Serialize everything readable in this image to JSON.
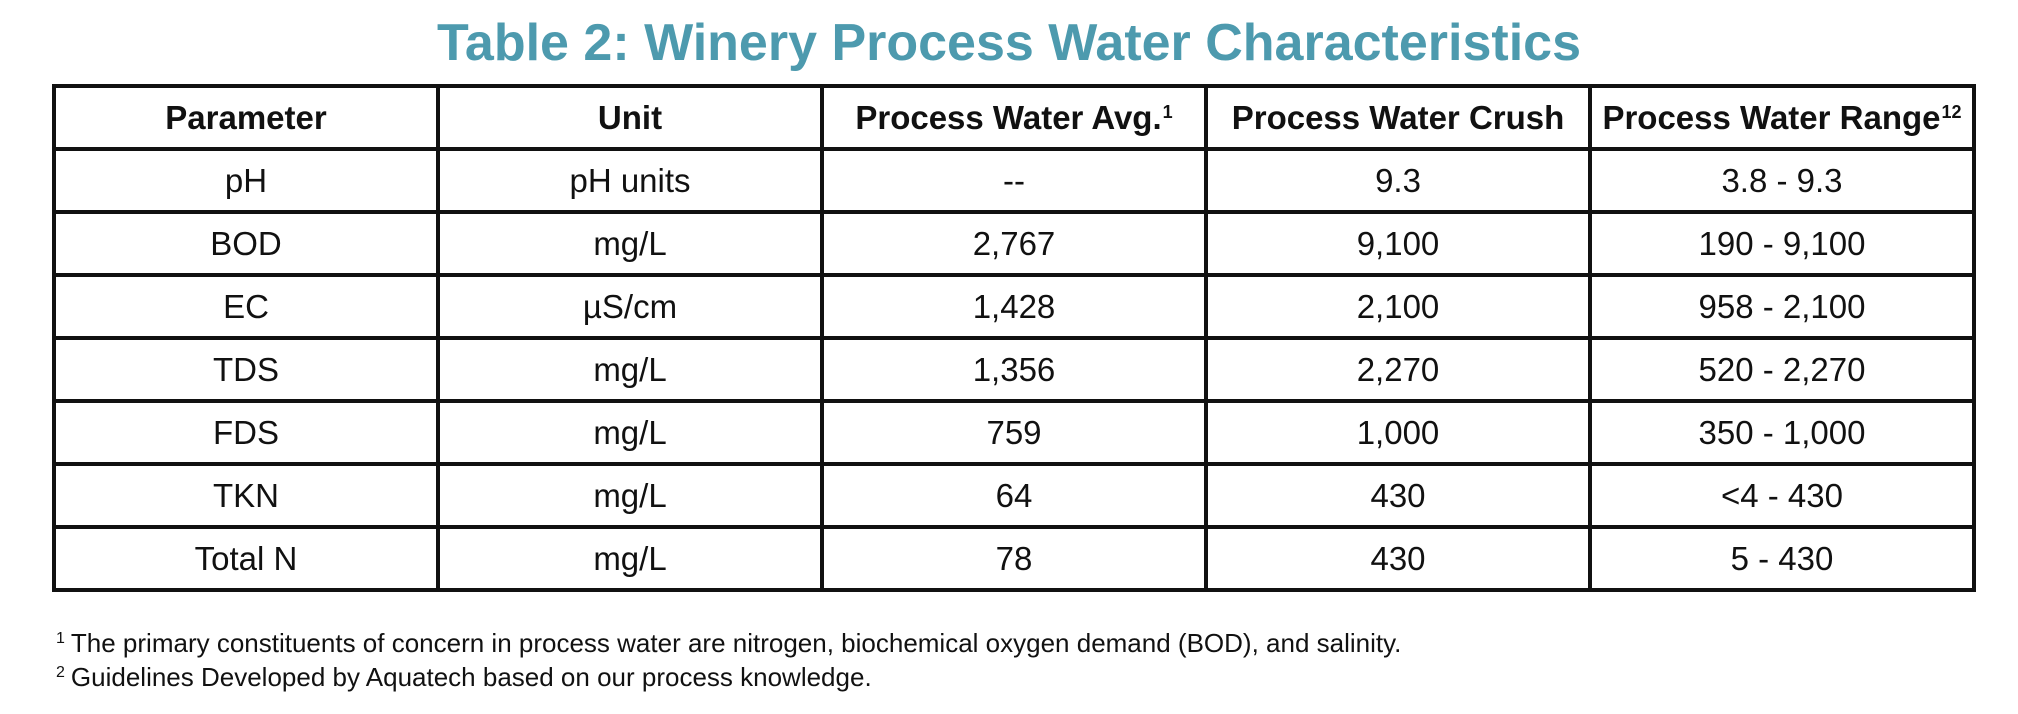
{
  "title": "Table 2: Winery Process Water Characteristics",
  "colors": {
    "title": "#4d9aae",
    "border": "#111111",
    "text": "#111111"
  },
  "table": {
    "headers": [
      {
        "label": "Parameter",
        "sup": ""
      },
      {
        "label": "Unit",
        "sup": ""
      },
      {
        "label": "Process Water Avg.",
        "sup": "1"
      },
      {
        "label": "Process Water Crush",
        "sup": ""
      },
      {
        "label": "Process Water Range",
        "sup": "12"
      }
    ],
    "rows": [
      [
        "pH",
        "pH units",
        "--",
        "9.3",
        "3.8 - 9.3"
      ],
      [
        "BOD",
        "mg/L",
        "2,767",
        "9,100",
        "190 - 9,100"
      ],
      [
        "EC",
        "µS/cm",
        "1,428",
        "2,100",
        "958 - 2,100"
      ],
      [
        "TDS",
        "mg/L",
        "1,356",
        "2,270",
        "520 - 2,270"
      ],
      [
        "FDS",
        "mg/L",
        "759",
        "1,000",
        "350 - 1,000"
      ],
      [
        "TKN",
        "mg/L",
        "64",
        "430",
        "<4 - 430"
      ],
      [
        "Total N",
        "mg/L",
        "78",
        "430",
        "5 - 430"
      ]
    ]
  },
  "footnotes": [
    {
      "mark": "1",
      "text": "The primary constituents of concern in process water are nitrogen, biochemical oxygen demand (BOD), and salinity."
    },
    {
      "mark": "2",
      "text": "Guidelines Developed by Aquatech based on our process knowledge."
    }
  ]
}
